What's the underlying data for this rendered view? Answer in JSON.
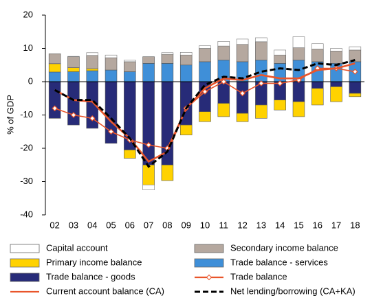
{
  "chart_data": {
    "type": "bar",
    "stacked": true,
    "y_label": "% of GDP",
    "categories": [
      "02",
      "03",
      "04",
      "05",
      "06",
      "07",
      "08",
      "09",
      "10",
      "11",
      "12",
      "13",
      "14",
      "15",
      "16",
      "17",
      "18"
    ],
    "ylim": [
      -40,
      20
    ],
    "yticks": [
      -40,
      -30,
      -20,
      -10,
      0,
      10,
      20
    ],
    "series": [
      {
        "name": "Capital account",
        "type": "bar",
        "color": "#ffffff",
        "values": [
          0,
          0.1,
          0.8,
          0.8,
          0.5,
          -1.5,
          0.5,
          0.8,
          0.8,
          1.4,
          1.6,
          1.2,
          1.5,
          3.3,
          1.6,
          0.8,
          1
        ]
      },
      {
        "name": "Secondary income balance",
        "type": "bar",
        "color": "#b5a89f",
        "values": [
          3,
          3.3,
          4,
          3.7,
          3,
          2,
          2.7,
          3,
          4,
          4.2,
          5.2,
          5.5,
          2.5,
          3.7,
          3.8,
          3.7,
          3.5
        ]
      },
      {
        "name": "Primary income balance",
        "type": "bar",
        "color": "#ffd200",
        "values": [
          2.5,
          1.2,
          0.6,
          0,
          -2.5,
          -6,
          -4.7,
          -3,
          -3,
          -4,
          -2.5,
          -4,
          -3,
          -4.5,
          -5,
          -4.5,
          -1
        ]
      },
      {
        "name": "Trade balance - services",
        "type": "bar",
        "color": "#3f8fd8",
        "values": [
          2.9,
          3,
          3.3,
          3.5,
          3,
          5.5,
          5.5,
          5,
          6,
          6.5,
          6,
          6.5,
          5.5,
          6.5,
          6,
          5.5,
          6
        ]
      },
      {
        "name": "Trade balance - goods",
        "type": "bar",
        "color": "#272b78",
        "values": [
          -11,
          -13,
          -14,
          -18.5,
          -20.5,
          -25,
          -25,
          -13,
          -9,
          -6.5,
          -9.5,
          -7,
          -5.5,
          -6,
          -2,
          -1.5,
          -3.5
        ]
      },
      {
        "name": "Trade balance",
        "type": "line",
        "marker": "diamond",
        "color": "#e9552b",
        "values": [
          -8,
          -10,
          -11,
          -15,
          -17.5,
          -19,
          -20,
          -8,
          -3,
          0,
          -3.5,
          -0.5,
          -0.5,
          0.5,
          4,
          4,
          3
        ]
      },
      {
        "name": "Current account balance (CA)",
        "type": "line",
        "color": "#e9552b",
        "values": [
          -2.5,
          -5.5,
          -6,
          -12,
          -17,
          -24,
          -21,
          -8,
          -2,
          1,
          0.5,
          2,
          1,
          1,
          3.5,
          4,
          5.5
        ]
      },
      {
        "name": "Net lending/borrowing (CA+KA)",
        "type": "line",
        "dashed": true,
        "color": "#000000",
        "values": [
          -2.5,
          -5.5,
          -5.5,
          -11,
          -17,
          -25.5,
          -21,
          -8,
          -1,
          1.5,
          1,
          3,
          4,
          3.5,
          5.5,
          5,
          6.5
        ]
      }
    ]
  }
}
